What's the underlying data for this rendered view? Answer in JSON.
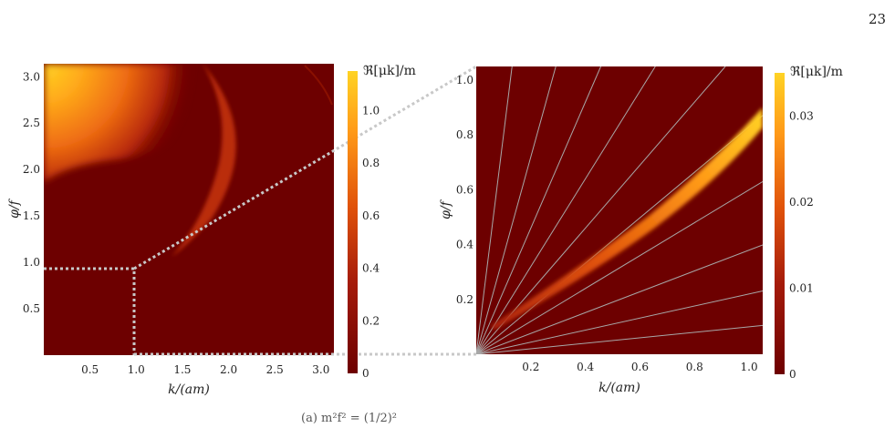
{
  "page_number": "23",
  "caption_fragment": "(a) m²f² = (1/2)²",
  "chart_data": [
    {
      "type": "heatmap",
      "xlabel": "k/(am)",
      "ylabel": "φ/f",
      "xlim": [
        0,
        3.14
      ],
      "ylim": [
        0,
        3.14
      ],
      "xticks": [
        "0.5",
        "1.0",
        "1.5",
        "2.0",
        "2.5",
        "3.0"
      ],
      "yticks": [
        "0.5",
        "1.0",
        "1.5",
        "2.0",
        "2.5",
        "3.0"
      ],
      "colorbar": {
        "label": "ℜ[μk]/m",
        "ticks": [
          "0",
          "0.2",
          "0.4",
          "0.6",
          "0.8",
          "1.0"
        ],
        "range": [
          0,
          1.15
        ]
      },
      "zoom_region": {
        "k": [
          0,
          1.0
        ],
        "phi": [
          0,
          0.96
        ]
      },
      "colormap": [
        "#6d0000",
        "#a51b0a",
        "#e0520a",
        "#ff9a18",
        "#ffd324"
      ]
    },
    {
      "type": "heatmap",
      "xlabel": "k/(am)",
      "ylabel": "φ/f",
      "xlim": [
        0,
        1.05
      ],
      "ylim": [
        0,
        1.05
      ],
      "xticks": [
        "0.2",
        "0.4",
        "0.6",
        "0.8",
        "1.0"
      ],
      "yticks": [
        "0.2",
        "0.4",
        "0.6",
        "0.8",
        "1.0"
      ],
      "colorbar": {
        "label": "ℜ[μk]/m",
        "ticks": [
          "0",
          "0.01",
          "0.02",
          "0.03"
        ],
        "range": [
          0,
          0.035
        ]
      },
      "ray_slopes": [
        0.1,
        0.22,
        0.38,
        0.6,
        0.83,
        1.15,
        1.6,
        2.3,
        3.6,
        8.0
      ],
      "band": {
        "start": [
          0.06,
          0.1
        ],
        "end": [
          1.05,
          0.87
        ]
      },
      "colormap": [
        "#6d0000",
        "#a51b0a",
        "#e0520a",
        "#ff9a18",
        "#ffd324"
      ]
    }
  ]
}
